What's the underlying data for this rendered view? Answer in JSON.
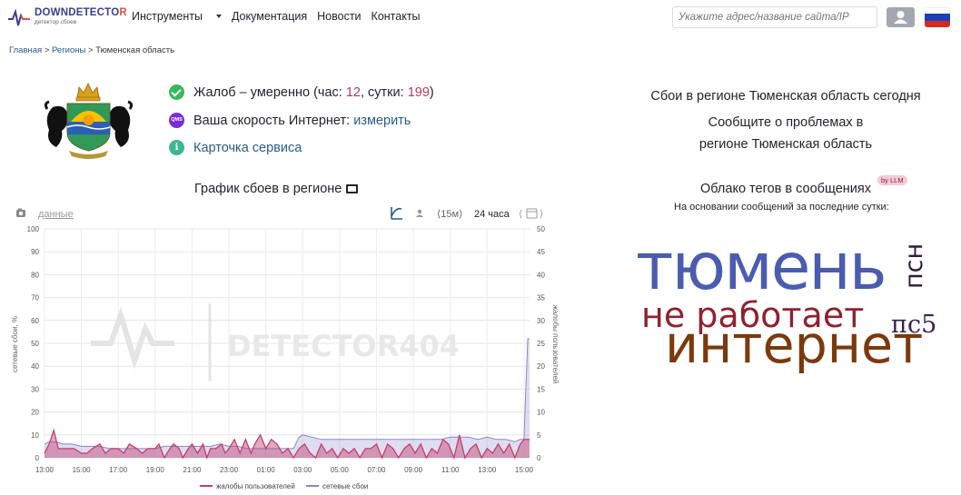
{
  "navbar": {
    "logo_title_main": "DOWNDETECTO",
    "logo_title_end": "R",
    "logo_subtitle": "детектор сбоев",
    "menu": [
      {
        "label": "Инструменты",
        "has_dropdown": true
      },
      {
        "label": "Документация"
      },
      {
        "label": "Новости"
      },
      {
        "label": "Контакты"
      }
    ],
    "search_placeholder": "Укажите адрес/название сайта/IP",
    "icons": [
      "user-icon",
      "russia-flag-icon"
    ]
  },
  "breadcrumb": {
    "items": [
      "Главная",
      "Регионы",
      "Тюменская область"
    ],
    "separator": ">"
  },
  "status": {
    "complaints_prefix": "Жалоб – умеренно (час: ",
    "hour_value": "12",
    "day_separator": ", сутки: ",
    "day_value": "199",
    "complaints_suffix": ")",
    "speed_label": "Ваша скорость Интернет: ",
    "speed_link": "измерить",
    "speed_icon_text": "QMS",
    "service_card": "Карточка сервиса",
    "service_icon_text": "i"
  },
  "right": {
    "region_title": "Сбои в регионе Тюменская область сегодня",
    "report_line1": "Сообщите о проблемах в",
    "report_line2": "регионе Тюменская область",
    "tag_cloud_title": "Облако тегов в сообщениях",
    "llm_badge": "by LLM",
    "tag_cloud_subtitle": "На основании сообщений за последние сутки:",
    "tags": [
      {
        "word": "тюмень",
        "color": "#4b5cb0"
      },
      {
        "word": "не работает",
        "color": "#8e2230"
      },
      {
        "word": "интернет",
        "color": "#7a3a0e"
      },
      {
        "word": "пс5",
        "color": "#3b1f4f"
      },
      {
        "word": "псн",
        "color": "#2d1a35"
      }
    ]
  },
  "chart": {
    "title": "График сбоев в регионе",
    "data_link": "данные",
    "interval_15m": "⟨15м⟩",
    "interval_24h": "24 часа",
    "watermark": "DETECTOR404",
    "legend_complaints": "жалобы пользователей",
    "legend_outages": "сетевые сбои"
  },
  "chart_data": {
    "type": "area",
    "xlabel": "",
    "ylabel_left": "сетевые сбои, %",
    "ylabel_right": "жалобы пользователей",
    "y_left_range": [
      0,
      100
    ],
    "y_left_ticks": [
      0,
      10,
      20,
      30,
      40,
      50,
      60,
      70,
      80,
      90,
      100
    ],
    "y_right_range": [
      0,
      50
    ],
    "y_right_ticks": [
      0,
      5,
      10,
      15,
      20,
      25,
      30,
      35,
      40,
      45,
      50
    ],
    "x_ticks": [
      "13:00",
      "15:00",
      "17:00",
      "19:00",
      "21:00",
      "23:00",
      "01:00",
      "03:00",
      "05:00",
      "07:00",
      "09:00",
      "11:00",
      "13:00",
      "15:00"
    ],
    "x_range_hours": [
      0,
      26.3
    ],
    "grid": true,
    "legend_position": "bottom",
    "series": [
      {
        "name": "жалобы пользователей",
        "axis": "right",
        "color": "#c2406d",
        "points": [
          [
            0,
            1
          ],
          [
            0.25,
            3
          ],
          [
            0.5,
            6
          ],
          [
            0.75,
            2
          ],
          [
            1,
            2
          ],
          [
            1.3,
            2
          ],
          [
            1.6,
            2
          ],
          [
            2,
            1
          ],
          [
            2.3,
            1
          ],
          [
            2.6,
            2
          ],
          [
            3,
            3
          ],
          [
            3.3,
            1
          ],
          [
            3.6,
            2
          ],
          [
            4,
            2
          ],
          [
            4.3,
            1
          ],
          [
            4.6,
            3
          ],
          [
            5,
            2
          ],
          [
            5.3,
            1
          ],
          [
            5.6,
            2
          ],
          [
            6,
            2
          ],
          [
            6.2,
            3
          ],
          [
            6.5,
            0
          ],
          [
            6.8,
            2
          ],
          [
            7,
            3
          ],
          [
            7.3,
            2
          ],
          [
            7.5,
            0
          ],
          [
            7.8,
            2
          ],
          [
            8,
            3
          ],
          [
            8.3,
            1
          ],
          [
            8.6,
            3
          ],
          [
            8.8,
            0
          ],
          [
            9,
            2
          ],
          [
            9.3,
            2
          ],
          [
            9.6,
            3
          ],
          [
            9.8,
            1
          ],
          [
            10,
            2
          ],
          [
            10.3,
            4
          ],
          [
            10.6,
            1
          ],
          [
            10.9,
            4
          ],
          [
            11.2,
            1
          ],
          [
            11.4,
            3
          ],
          [
            11.7,
            5
          ],
          [
            12,
            2
          ],
          [
            12.3,
            4
          ],
          [
            12.6,
            3
          ],
          [
            12.9,
            1
          ],
          [
            13.2,
            2
          ],
          [
            13.5,
            0
          ],
          [
            13.8,
            2
          ],
          [
            14.1,
            3
          ],
          [
            14.4,
            1
          ],
          [
            14.7,
            0
          ],
          [
            15,
            3
          ],
          [
            15.3,
            1
          ],
          [
            15.6,
            2
          ],
          [
            15.9,
            0
          ],
          [
            16.2,
            2
          ],
          [
            16.5,
            1
          ],
          [
            16.8,
            2
          ],
          [
            17.1,
            0
          ],
          [
            17.4,
            2
          ],
          [
            17.7,
            2
          ],
          [
            18,
            3
          ],
          [
            18.3,
            0
          ],
          [
            18.6,
            3
          ],
          [
            18.9,
            2
          ],
          [
            19.2,
            0
          ],
          [
            19.5,
            2
          ],
          [
            19.8,
            3
          ],
          [
            20.1,
            1
          ],
          [
            20.4,
            3
          ],
          [
            20.7,
            0
          ],
          [
            21,
            2
          ],
          [
            21.3,
            1
          ],
          [
            21.6,
            4
          ],
          [
            21.9,
            3
          ],
          [
            22.2,
            0
          ],
          [
            22.5,
            5
          ],
          [
            22.8,
            0
          ],
          [
            23.1,
            2
          ],
          [
            23.4,
            3
          ],
          [
            23.7,
            0
          ],
          [
            24,
            2
          ],
          [
            24.3,
            1
          ],
          [
            24.6,
            3
          ],
          [
            24.9,
            1
          ],
          [
            25.2,
            3
          ],
          [
            25.5,
            0
          ],
          [
            25.8,
            3
          ],
          [
            26,
            4
          ],
          [
            26.3,
            4
          ]
        ]
      },
      {
        "name": "сетевые сбои",
        "axis": "left",
        "color": "#8b85d0",
        "points": [
          [
            0,
            6
          ],
          [
            0.3,
            7
          ],
          [
            0.6,
            7
          ],
          [
            1,
            6
          ],
          [
            1.5,
            6
          ],
          [
            2,
            5
          ],
          [
            2.5,
            5
          ],
          [
            3,
            5
          ],
          [
            3.5,
            4
          ],
          [
            4,
            4
          ],
          [
            4.5,
            4
          ],
          [
            5,
            4
          ],
          [
            5.5,
            4
          ],
          [
            6,
            4
          ],
          [
            6.5,
            5
          ],
          [
            7,
            5
          ],
          [
            7.5,
            5
          ],
          [
            8,
            5
          ],
          [
            8.5,
            5
          ],
          [
            9,
            5
          ],
          [
            9.5,
            6
          ],
          [
            10,
            5
          ],
          [
            10.5,
            5
          ],
          [
            11,
            4
          ],
          [
            11.5,
            4
          ],
          [
            12,
            4
          ],
          [
            12.5,
            4
          ],
          [
            13,
            4
          ],
          [
            13.5,
            4
          ],
          [
            13.8,
            9
          ],
          [
            14,
            10
          ],
          [
            14.5,
            9
          ],
          [
            15,
            8
          ],
          [
            15.5,
            8
          ],
          [
            16,
            8
          ],
          [
            16.5,
            8
          ],
          [
            17,
            8
          ],
          [
            17.5,
            8
          ],
          [
            18,
            8
          ],
          [
            18.5,
            8
          ],
          [
            19,
            8
          ],
          [
            19.5,
            8
          ],
          [
            20,
            8
          ],
          [
            20.5,
            8
          ],
          [
            21,
            8
          ],
          [
            21.5,
            8
          ],
          [
            22,
            9
          ],
          [
            22.5,
            9
          ],
          [
            23,
            9
          ],
          [
            23.5,
            8
          ],
          [
            24,
            9
          ],
          [
            24.5,
            8
          ],
          [
            25,
            8
          ],
          [
            25.5,
            7
          ],
          [
            25.8,
            8
          ],
          [
            26,
            8
          ],
          [
            26.1,
            30
          ],
          [
            26.2,
            52
          ],
          [
            26.3,
            52
          ]
        ]
      }
    ]
  }
}
